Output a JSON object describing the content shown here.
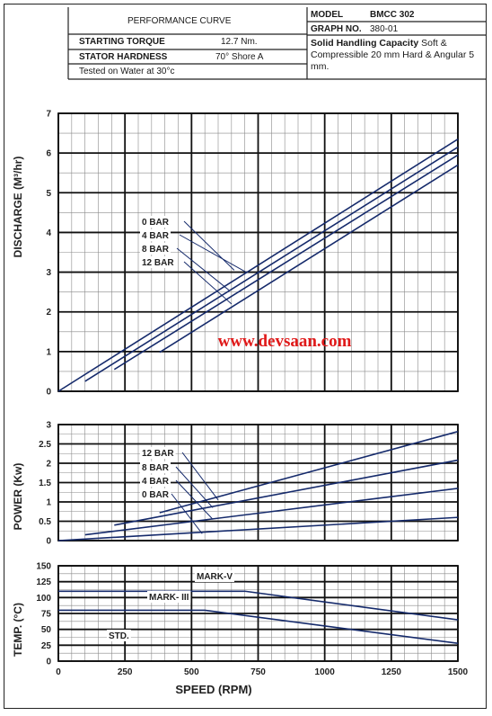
{
  "header": {
    "title": "PERFORMANCE CURVE",
    "starting_torque_label": "STARTING TORQUE",
    "starting_torque_value": "12.7  Nm.",
    "stator_hardness_label": "STATOR HARDNESS",
    "stator_hardness_value": "70° Shore  A",
    "tested_on": "Tested on Water at 30°c",
    "model_label": "MODEL",
    "model_value": "BMCC 302",
    "graph_no_label": "GRAPH NO.",
    "graph_no_value": "380-01",
    "solid_handling_label": "Solid Handling Capacity",
    "solid_handling_text": "Soft & Compressible 20 mm Hard & Angular 5 mm."
  },
  "watermark": "www.devsaan.com",
  "chart_data": [
    {
      "type": "line",
      "ylabel": "DISCHARGE (M³/hr)",
      "ylim": [
        0,
        7
      ],
      "yticks": [
        0,
        1,
        2,
        3,
        4,
        5,
        6,
        7
      ],
      "xlim": [
        0,
        1500
      ],
      "series": [
        {
          "name": "0 BAR",
          "x": [
            0,
            1500
          ],
          "y": [
            0,
            6.35
          ]
        },
        {
          "name": "4 BAR",
          "x": [
            100,
            1500
          ],
          "y": [
            0.25,
            6.15
          ]
        },
        {
          "name": "8 BAR",
          "x": [
            210,
            1500
          ],
          "y": [
            0.55,
            5.95
          ]
        },
        {
          "name": "12 BAR",
          "x": [
            380,
            1500
          ],
          "y": [
            0.98,
            5.7
          ]
        }
      ]
    },
    {
      "type": "line",
      "ylabel": "POWER (Kw)",
      "ylim": [
        0,
        3
      ],
      "yticks": [
        0,
        0.5,
        1,
        1.5,
        2,
        2.5,
        3
      ],
      "ytick_labels": [
        "0",
        "0.5",
        "1",
        "1.5",
        "2",
        "2.5",
        "3"
      ],
      "xlim": [
        0,
        1500
      ],
      "series": [
        {
          "name": "12 BAR",
          "x": [
            380,
            1500
          ],
          "y": [
            0.72,
            2.82
          ]
        },
        {
          "name": "8 BAR",
          "x": [
            210,
            1500
          ],
          "y": [
            0.4,
            2.08
          ]
        },
        {
          "name": "4 BAR",
          "x": [
            100,
            1500
          ],
          "y": [
            0.15,
            1.35
          ]
        },
        {
          "name": "0 BAR",
          "x": [
            0,
            1500
          ],
          "y": [
            0,
            0.6
          ]
        }
      ]
    },
    {
      "type": "line",
      "ylabel": "TEMP. (°C)",
      "xlabel": "SPEED (RPM)",
      "ylim": [
        0,
        150
      ],
      "yticks": [
        0,
        25,
        50,
        75,
        100,
        125,
        150
      ],
      "xlim": [
        0,
        1500
      ],
      "xticks": [
        0,
        250,
        500,
        750,
        1000,
        1250,
        1500
      ],
      "series": [
        {
          "name": "MARK-V",
          "x": [
            0,
            700,
            1500
          ],
          "y": [
            110,
            110,
            65
          ]
        },
        {
          "name": "MARK- III",
          "x": [
            0,
            550,
            1500
          ],
          "y": [
            80,
            80,
            28
          ]
        },
        {
          "name": "STD.",
          "x": [],
          "y": []
        }
      ]
    }
  ]
}
